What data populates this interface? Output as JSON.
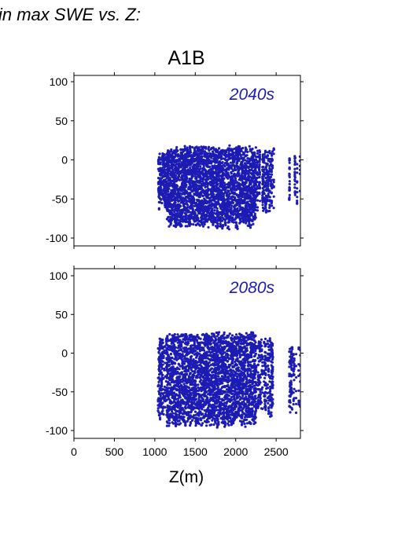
{
  "page_title": "in max SWE vs. Z:",
  "chart_data": {
    "type": "scatter",
    "scenario": "A1B",
    "xlabel": "Z(m)",
    "ylabel": "",
    "xlim": [
      0,
      2800
    ],
    "ylim": [
      -110,
      110
    ],
    "x_ticks": [
      0,
      500,
      1000,
      1500,
      2000,
      2500
    ],
    "y_ticks": [
      -100,
      -50,
      0,
      50,
      100
    ],
    "grid": false,
    "marker_color": "#1c1cb4",
    "panels": [
      {
        "label": "2040s",
        "point_bands": [
          {
            "x_range": [
              1040,
              1150
            ],
            "y_range": [
              -65,
              12
            ],
            "density": 0.55
          },
          {
            "x_range": [
              1150,
              2250
            ],
            "y_range": [
              -90,
              19
            ],
            "density": 1.0
          },
          {
            "x_range": [
              2250,
              2470
            ],
            "y_range": [
              -70,
              16
            ],
            "density": 0.45
          },
          {
            "x_range": [
              2650,
              2800
            ],
            "y_range": [
              -58,
              6
            ],
            "density": 0.3
          }
        ]
      },
      {
        "label": "2080s",
        "point_bands": [
          {
            "x_range": [
              1040,
              1150
            ],
            "y_range": [
              -90,
              22
            ],
            "density": 0.55
          },
          {
            "x_range": [
              1150,
              2250
            ],
            "y_range": [
              -97,
              28
            ],
            "density": 1.0
          },
          {
            "x_range": [
              2250,
              2470
            ],
            "y_range": [
              -85,
              22
            ],
            "density": 0.45
          },
          {
            "x_range": [
              2650,
              2800
            ],
            "y_range": [
              -80,
              12
            ],
            "density": 0.3
          }
        ]
      }
    ]
  }
}
